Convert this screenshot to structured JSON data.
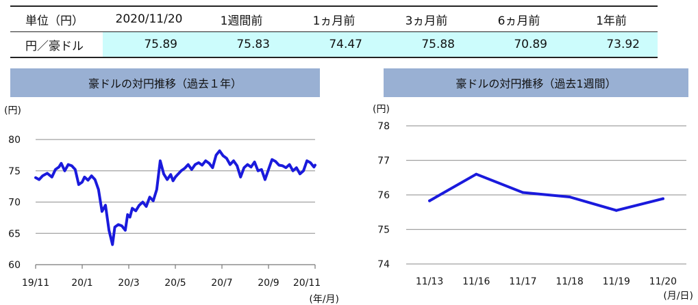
{
  "table": {
    "headers": [
      "単位（円）",
      "2020/11/20",
      "1週間前",
      "1ヵ月前",
      "3ヵ月前",
      "6ヵ月前",
      "1年前"
    ],
    "row_label": "円／豪ドル",
    "values": [
      "75.89",
      "75.83",
      "74.47",
      "75.88",
      "70.89",
      "73.92"
    ]
  },
  "colors": {
    "line": "#1a1adc",
    "highlight": "#ccfcfc",
    "title_bg": "#99b0d3",
    "grid": "#a0a0a0"
  },
  "chart_data": [
    {
      "type": "line",
      "title": "豪ドルの対円推移（過去１年）",
      "yunit": "(円)",
      "xunit": "(年/月)",
      "ylim": [
        60,
        80
      ],
      "yticks": [
        60,
        65,
        70,
        75,
        80
      ],
      "xlim": [
        0,
        12
      ],
      "xtick_labels": [
        "19/11",
        "20/1",
        "20/3",
        "20/5",
        "20/7",
        "20/9",
        "20/11"
      ],
      "xtick_positions": [
        0,
        2,
        4,
        6,
        8,
        10,
        12
      ],
      "grid": true,
      "series": [
        {
          "x": [
            0.0,
            0.15,
            0.3,
            0.5,
            0.7,
            0.85,
            1.0,
            1.1,
            1.25,
            1.4,
            1.55,
            1.7,
            1.85,
            2.0,
            2.1,
            2.25,
            2.4,
            2.55,
            2.7,
            2.85,
            3.0,
            3.15,
            3.3,
            3.4,
            3.55,
            3.7,
            3.85,
            3.95,
            4.05,
            4.15,
            4.3,
            4.45,
            4.6,
            4.75,
            4.9,
            5.05,
            5.2,
            5.35,
            5.5,
            5.65,
            5.8,
            5.9,
            6.0,
            6.1,
            6.25,
            6.4,
            6.55,
            6.7,
            6.85,
            7.0,
            7.15,
            7.3,
            7.45,
            7.6,
            7.75,
            7.9,
            8.05,
            8.2,
            8.35,
            8.5,
            8.65,
            8.8,
            8.95,
            9.1,
            9.25,
            9.4,
            9.55,
            9.7,
            9.85,
            10.0,
            10.15,
            10.3,
            10.45,
            10.6,
            10.75,
            10.9,
            11.05,
            11.2,
            11.35,
            11.5,
            11.65,
            11.8,
            11.95,
            12.0
          ],
          "y": [
            73.9,
            73.6,
            74.2,
            74.6,
            74.0,
            75.2,
            75.6,
            76.2,
            75.0,
            76.0,
            75.8,
            75.2,
            72.8,
            73.2,
            74.0,
            73.5,
            74.2,
            73.6,
            72.0,
            68.5,
            69.5,
            65.5,
            63.2,
            66.0,
            66.4,
            66.2,
            65.5,
            68.0,
            67.6,
            69.0,
            68.6,
            69.5,
            70.0,
            69.3,
            70.8,
            70.2,
            72.0,
            76.6,
            74.5,
            73.6,
            74.4,
            73.4,
            74.0,
            74.4,
            75.0,
            75.4,
            76.0,
            75.2,
            76.0,
            76.3,
            75.9,
            76.6,
            76.2,
            75.5,
            77.5,
            78.2,
            77.4,
            77.0,
            76.0,
            76.6,
            75.8,
            74.0,
            75.5,
            76.0,
            75.6,
            76.4,
            75.0,
            75.2,
            73.6,
            75.2,
            76.8,
            76.5,
            75.9,
            75.8,
            75.5,
            76.0,
            75.0,
            75.5,
            74.5,
            75.0,
            76.6,
            76.3,
            75.6,
            75.9
          ]
        }
      ]
    },
    {
      "type": "line",
      "title": "豪ドルの対円推移（過去1週間）",
      "yunit": "(円)",
      "xunit": "(月/日)",
      "ylim": [
        74,
        78
      ],
      "yticks": [
        74,
        75,
        76,
        77,
        78
      ],
      "categories": [
        "11/13",
        "11/16",
        "11/17",
        "11/18",
        "11/19",
        "11/20"
      ],
      "grid": true,
      "series": [
        {
          "values": [
            75.83,
            76.6,
            76.07,
            75.94,
            75.55,
            75.89
          ]
        }
      ]
    }
  ]
}
